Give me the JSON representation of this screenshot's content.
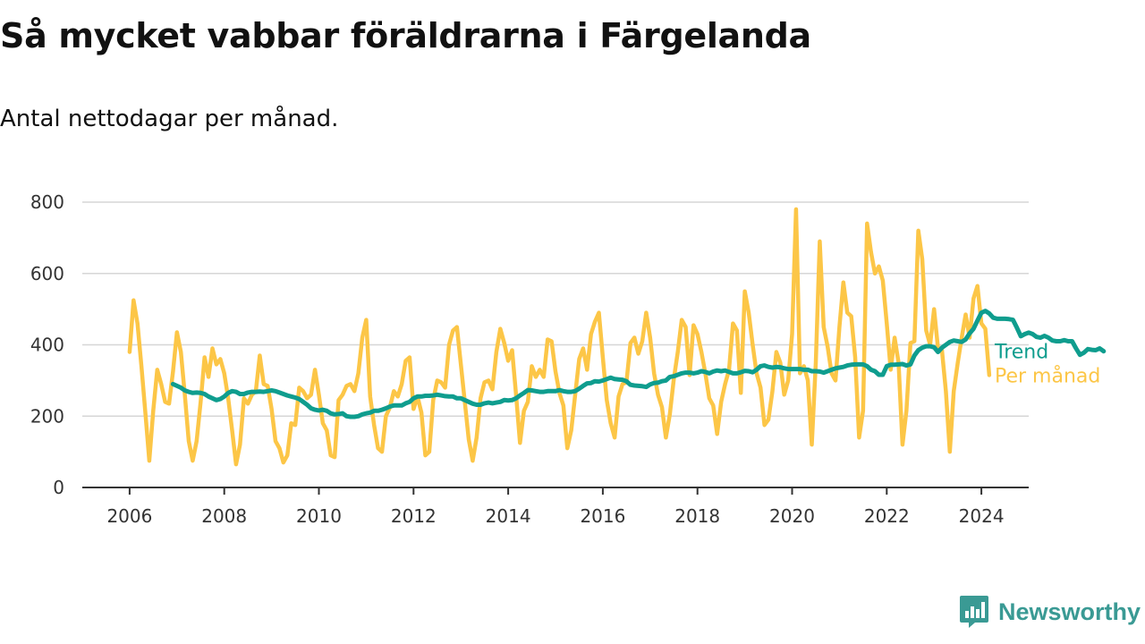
{
  "title": "Så mycket vabbar föräldrarna i Färgelanda",
  "subtitle": "Antal nettodagar per månad.",
  "brand": {
    "name": "Newsworthy",
    "icon": "newsworthy-logo-icon",
    "color": "#3a9a94"
  },
  "chart_data": {
    "type": "line",
    "x_axis": {
      "ticks": [
        "2006",
        "2008",
        "2010",
        "2012",
        "2014",
        "2016",
        "2018",
        "2020",
        "2022",
        "2024"
      ],
      "range": [
        2005,
        2025
      ]
    },
    "y_axis": {
      "ticks": [
        "0",
        "200",
        "400",
        "600",
        "800"
      ],
      "range": [
        0,
        800
      ]
    },
    "grid": true,
    "legend_placement": "right-end-labels",
    "series": [
      {
        "name": "Per månad",
        "color": "#fcc647",
        "start": "2006-01",
        "frequency": "monthly",
        "values": [
          380,
          525,
          460,
          340,
          210,
          75,
          215,
          330,
          290,
          240,
          235,
          325,
          435,
          380,
          260,
          130,
          75,
          130,
          240,
          365,
          310,
          390,
          345,
          360,
          320,
          250,
          160,
          65,
          120,
          250,
          235,
          260,
          270,
          370,
          290,
          285,
          220,
          130,
          110,
          70,
          90,
          180,
          175,
          280,
          270,
          250,
          260,
          330,
          260,
          180,
          160,
          90,
          85,
          245,
          260,
          285,
          290,
          270,
          320,
          420,
          470,
          255,
          175,
          110,
          100,
          200,
          225,
          270,
          255,
          290,
          355,
          365,
          220,
          255,
          210,
          90,
          100,
          245,
          300,
          295,
          280,
          400,
          440,
          450,
          345,
          240,
          135,
          75,
          140,
          250,
          295,
          300,
          275,
          380,
          445,
          405,
          355,
          385,
          260,
          125,
          215,
          240,
          340,
          310,
          330,
          310,
          415,
          410,
          325,
          265,
          230,
          110,
          160,
          260,
          360,
          390,
          330,
          430,
          465,
          490,
          365,
          245,
          180,
          140,
          255,
          290,
          295,
          405,
          420,
          375,
          410,
          490,
          420,
          320,
          260,
          225,
          140,
          205,
          305,
          380,
          470,
          450,
          315,
          455,
          430,
          380,
          320,
          250,
          230,
          150,
          240,
          290,
          330,
          460,
          440,
          265,
          550,
          490,
          400,
          320,
          280,
          175,
          190,
          270,
          380,
          350,
          260,
          300,
          430,
          780,
          320,
          340,
          300,
          120,
          350,
          690,
          450,
          395,
          320,
          300,
          450,
          575,
          490,
          480,
          365,
          140,
          215,
          740,
          660,
          600,
          620,
          580,
          460,
          330,
          420,
          350,
          120,
          215,
          405,
          410,
          720,
          640,
          440,
          400,
          500,
          390,
          385,
          270,
          100,
          270,
          350,
          420,
          485,
          420,
          530,
          565,
          460,
          445,
          315
        ]
      },
      {
        "name": "Trend",
        "color": "#0f9d8e",
        "start": "2006-12",
        "frequency": "monthly",
        "values": [
          290,
          285,
          280,
          272,
          268,
          265,
          266,
          265,
          262,
          255,
          250,
          245,
          248,
          255,
          265,
          270,
          268,
          262,
          262,
          266,
          268,
          268,
          269,
          268,
          270,
          272,
          270,
          266,
          262,
          258,
          255,
          252,
          248,
          240,
          232,
          222,
          218,
          216,
          218,
          215,
          208,
          205,
          206,
          208,
          200,
          198,
          198,
          200,
          205,
          208,
          210,
          215,
          215,
          218,
          222,
          227,
          230,
          230,
          230,
          236,
          240,
          250,
          255,
          255,
          257,
          257,
          258,
          260,
          258,
          256,
          255,
          255,
          250,
          250,
          245,
          240,
          235,
          232,
          232,
          236,
          238,
          236,
          238,
          240,
          245,
          244,
          245,
          250,
          258,
          265,
          273,
          272,
          270,
          268,
          268,
          270,
          270,
          270,
          273,
          270,
          268,
          268,
          270,
          277,
          285,
          292,
          293,
          298,
          297,
          300,
          304,
          308,
          304,
          303,
          302,
          298,
          288,
          286,
          285,
          284,
          282,
          289,
          293,
          294,
          298,
          300,
          310,
          312,
          316,
          320,
          322,
          322,
          320,
          322,
          326,
          324,
          320,
          325,
          328,
          326,
          328,
          324,
          320,
          320,
          323,
          327,
          326,
          323,
          330,
          340,
          342,
          338,
          336,
          338,
          337,
          334,
          332,
          332,
          332,
          332,
          330,
          330,
          326,
          326,
          325,
          322,
          326,
          330,
          334,
          336,
          338,
          342,
          344,
          345,
          345,
          345,
          340,
          330,
          326,
          316,
          316,
          340,
          344,
          344,
          345,
          346,
          342,
          345,
          370,
          385,
          392,
          396,
          396,
          393,
          380,
          392,
          400,
          408,
          412,
          410,
          408,
          415,
          432,
          445,
          468,
          490,
          495,
          488,
          476,
          473,
          473,
          473,
          472,
          470,
          448,
          424,
          430,
          434,
          430,
          422,
          420,
          425,
          420,
          412,
          410,
          410,
          413,
          410,
          410,
          390,
          372,
          378,
          388,
          386,
          385,
          390,
          382
        ]
      }
    ]
  }
}
